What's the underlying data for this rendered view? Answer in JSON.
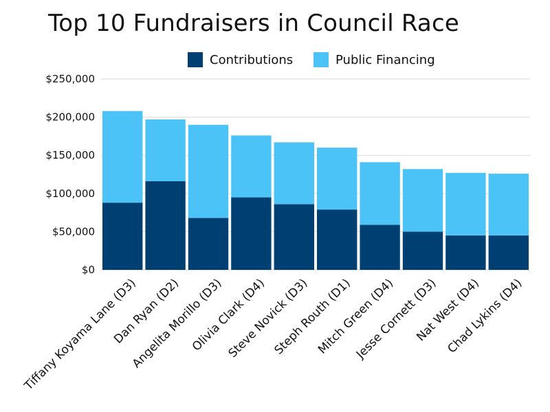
{
  "chart_data": {
    "type": "bar",
    "stacked": true,
    "title": "Top 10 Fundraisers in Council Race",
    "xlabel": "",
    "ylabel": "",
    "ylim": [
      0,
      250000
    ],
    "yticks": [
      0,
      50000,
      100000,
      150000,
      200000,
      250000
    ],
    "ytick_labels": [
      "$0",
      "$50,000",
      "$100,000",
      "$150,000",
      "$200,000",
      "$250,000"
    ],
    "grid": true,
    "legend_position": "top-center",
    "categories": [
      "Tiffany Koyama Lane (D3)",
      "Dan Ryan (D2)",
      "Angelita Morillo (D3)",
      "Olivia Clark (D4)",
      "Steve Novick (D3)",
      "Steph Routh (D1)",
      "Mitch Green (D4)",
      "Jesse Cornett (D3)",
      "Nat West (D4)",
      "Chad Lykins (D4)"
    ],
    "series": [
      {
        "name": "Contributions",
        "color": "#003f72",
        "values": [
          88000,
          116000,
          68000,
          95000,
          86000,
          79000,
          59000,
          50000,
          45000,
          45000
        ]
      },
      {
        "name": "Public Financing",
        "color": "#4bc3f7",
        "values": [
          120000,
          81000,
          122000,
          81000,
          81000,
          81000,
          82000,
          82000,
          82000,
          81000
        ]
      }
    ]
  }
}
